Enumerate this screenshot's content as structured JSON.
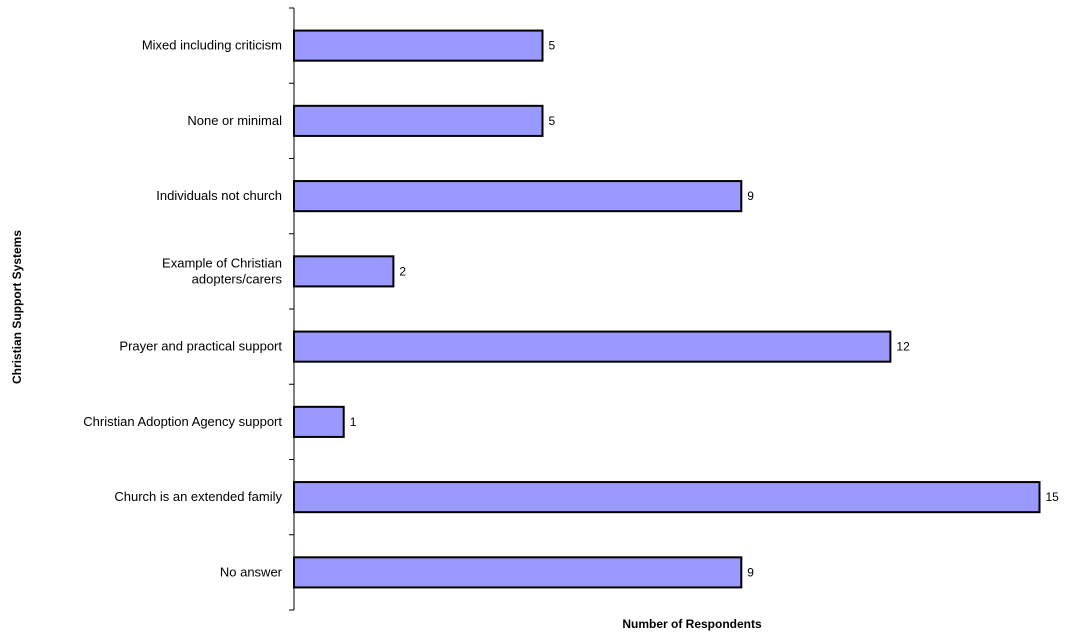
{
  "chart_data": {
    "type": "bar",
    "orientation": "horizontal",
    "categories": [
      [
        "Mixed including criticism"
      ],
      [
        "None or minimal"
      ],
      [
        "Individuals not church"
      ],
      [
        "Example of Christian",
        "adopters/carers"
      ],
      [
        "Prayer and practical support"
      ],
      [
        "Christian Adoption Agency support"
      ],
      [
        "Church is an extended family"
      ],
      [
        "No answer"
      ]
    ],
    "values": [
      5,
      5,
      9,
      2,
      12,
      1,
      15,
      9
    ],
    "xlabel": "Number of Respondents",
    "ylabel": "Christian Support Systems",
    "xlim": [
      0,
      15
    ],
    "grid": false,
    "legend": "none",
    "bar_color": "#9999ff",
    "bar_edge_color": "#000000"
  }
}
